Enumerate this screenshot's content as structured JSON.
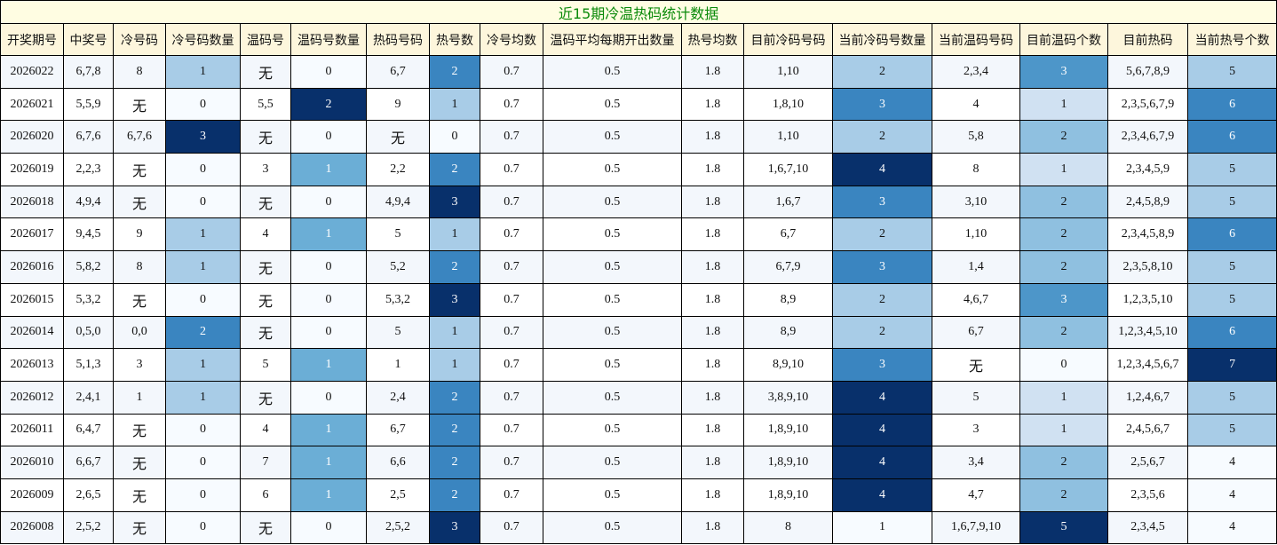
{
  "title": "近15期冷温热码统计数据",
  "headers": [
    "开奖期号",
    "中奖号",
    "冷号码",
    "冷号码数量",
    "温码号",
    "温码号数量",
    "热码号码",
    "热号数",
    "冷号均数",
    "温码平均每期开出数量",
    "热号均数",
    "目前冷码号码",
    "当前冷码号数量",
    "当前温码号码",
    "目前温码个数",
    "目前热码",
    "当前热号个数"
  ],
  "rows": [
    [
      2026022,
      "6,7,8",
      8,
      1,
      "无",
      0,
      "6,7",
      2,
      0.7,
      0.5,
      1.8,
      "1,10",
      2,
      "2,3,4",
      3,
      "5,6,7,8,9",
      5
    ],
    [
      2026021,
      "5,5,9",
      "无",
      0,
      "5,5",
      2,
      9,
      1,
      0.7,
      0.5,
      1.8,
      "1,8,10",
      3,
      4,
      1,
      "2,3,5,6,7,9",
      6
    ],
    [
      2026020,
      "6,7,6",
      "6,7,6",
      3,
      "无",
      0,
      "无",
      0,
      0.7,
      0.5,
      1.8,
      "1,10",
      2,
      "5,8",
      2,
      "2,3,4,6,7,9",
      6
    ],
    [
      2026019,
      "2,2,3",
      "无",
      0,
      3,
      1,
      "2,2",
      2,
      0.7,
      0.5,
      1.8,
      "1,6,7,10",
      4,
      8,
      1,
      "2,3,4,5,9",
      5
    ],
    [
      2026018,
      "4,9,4",
      "无",
      0,
      "无",
      0,
      "4,9,4",
      3,
      0.7,
      0.5,
      1.8,
      "1,6,7",
      3,
      "3,10",
      2,
      "2,4,5,8,9",
      5
    ],
    [
      2026017,
      "9,4,5",
      9,
      1,
      4,
      1,
      5,
      1,
      0.7,
      0.5,
      1.8,
      "6,7",
      2,
      "1,10",
      2,
      "2,3,4,5,8,9",
      6
    ],
    [
      2026016,
      "5,8,2",
      8,
      1,
      "无",
      0,
      "5,2",
      2,
      0.7,
      0.5,
      1.8,
      "6,7,9",
      3,
      "1,4",
      2,
      "2,3,5,8,10",
      5
    ],
    [
      2026015,
      "5,3,2",
      "无",
      0,
      "无",
      0,
      "5,3,2",
      3,
      0.7,
      0.5,
      1.8,
      "8,9",
      2,
      "4,6,7",
      3,
      "1,2,3,5,10",
      5
    ],
    [
      2026014,
      "0,5,0",
      "0,0",
      2,
      "无",
      0,
      5,
      1,
      0.7,
      0.5,
      1.8,
      "8,9",
      2,
      "6,7",
      2,
      "1,2,3,4,5,10",
      6
    ],
    [
      2026013,
      "5,1,3",
      3,
      1,
      5,
      1,
      1,
      1,
      0.7,
      0.5,
      1.8,
      "8,9,10",
      3,
      "无",
      0,
      "1,2,3,4,5,6,7",
      7
    ],
    [
      2026012,
      "2,4,1",
      1,
      1,
      "无",
      0,
      "2,4",
      2,
      0.7,
      0.5,
      1.8,
      "3,8,9,10",
      4,
      5,
      1,
      "1,2,4,6,7",
      5
    ],
    [
      2026011,
      "6,4,7",
      "无",
      0,
      4,
      1,
      "6,7",
      2,
      0.7,
      0.5,
      1.8,
      "1,8,9,10",
      4,
      3,
      1,
      "2,4,5,6,7",
      5
    ],
    [
      2026010,
      "6,6,7",
      "无",
      0,
      7,
      1,
      "6,6",
      2,
      0.7,
      0.5,
      1.8,
      "1,8,9,10",
      4,
      "3,4",
      2,
      "2,5,6,7",
      4
    ],
    [
      2026009,
      "2,6,5",
      "无",
      0,
      6,
      1,
      "2,5",
      2,
      0.7,
      0.5,
      1.8,
      "1,8,9,10",
      4,
      "4,7",
      2,
      "2,3,5,6",
      4
    ],
    [
      2026008,
      "2,5,2",
      "无",
      0,
      "无",
      0,
      "2,5,2",
      3,
      0.7,
      0.5,
      1.8,
      8,
      1,
      "1,6,7,9,10",
      5,
      "2,3,4,5",
      4
    ]
  ]
}
